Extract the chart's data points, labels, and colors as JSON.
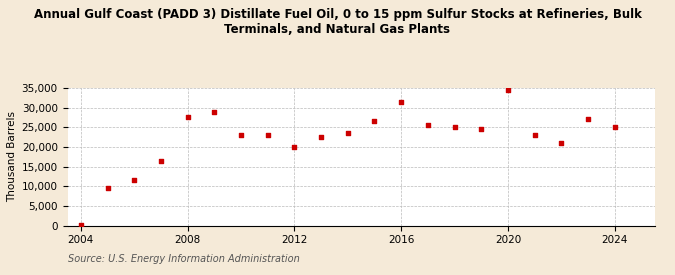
{
  "title_line1": "Annual Gulf Coast (PADD 3) Distillate Fuel Oil, 0 to 15 ppm Sulfur Stocks at Refineries, Bulk",
  "title_line2": "Terminals, and Natural Gas Plants",
  "ylabel": "Thousand Barrels",
  "source": "Source: U.S. Energy Information Administration",
  "background_color": "#f5ead8",
  "plot_background_color": "#ffffff",
  "marker_color": "#cc0000",
  "years": [
    2004,
    2005,
    2006,
    2007,
    2008,
    2009,
    2010,
    2011,
    2012,
    2013,
    2014,
    2015,
    2016,
    2017,
    2018,
    2019,
    2020,
    2021,
    2022,
    2023,
    2024
  ],
  "values": [
    200,
    9500,
    11500,
    16500,
    27500,
    29000,
    23000,
    23000,
    20000,
    22500,
    23500,
    26500,
    31500,
    25500,
    25000,
    24500,
    34500,
    23000,
    21000,
    27000,
    25000
  ],
  "xlim": [
    2003.5,
    2025.5
  ],
  "ylim": [
    0,
    35000
  ],
  "yticks": [
    0,
    5000,
    10000,
    15000,
    20000,
    25000,
    30000,
    35000
  ],
  "xticks": [
    2004,
    2008,
    2012,
    2016,
    2020,
    2024
  ],
  "title_fontsize": 8.5,
  "axis_fontsize": 7.5,
  "source_fontsize": 7
}
